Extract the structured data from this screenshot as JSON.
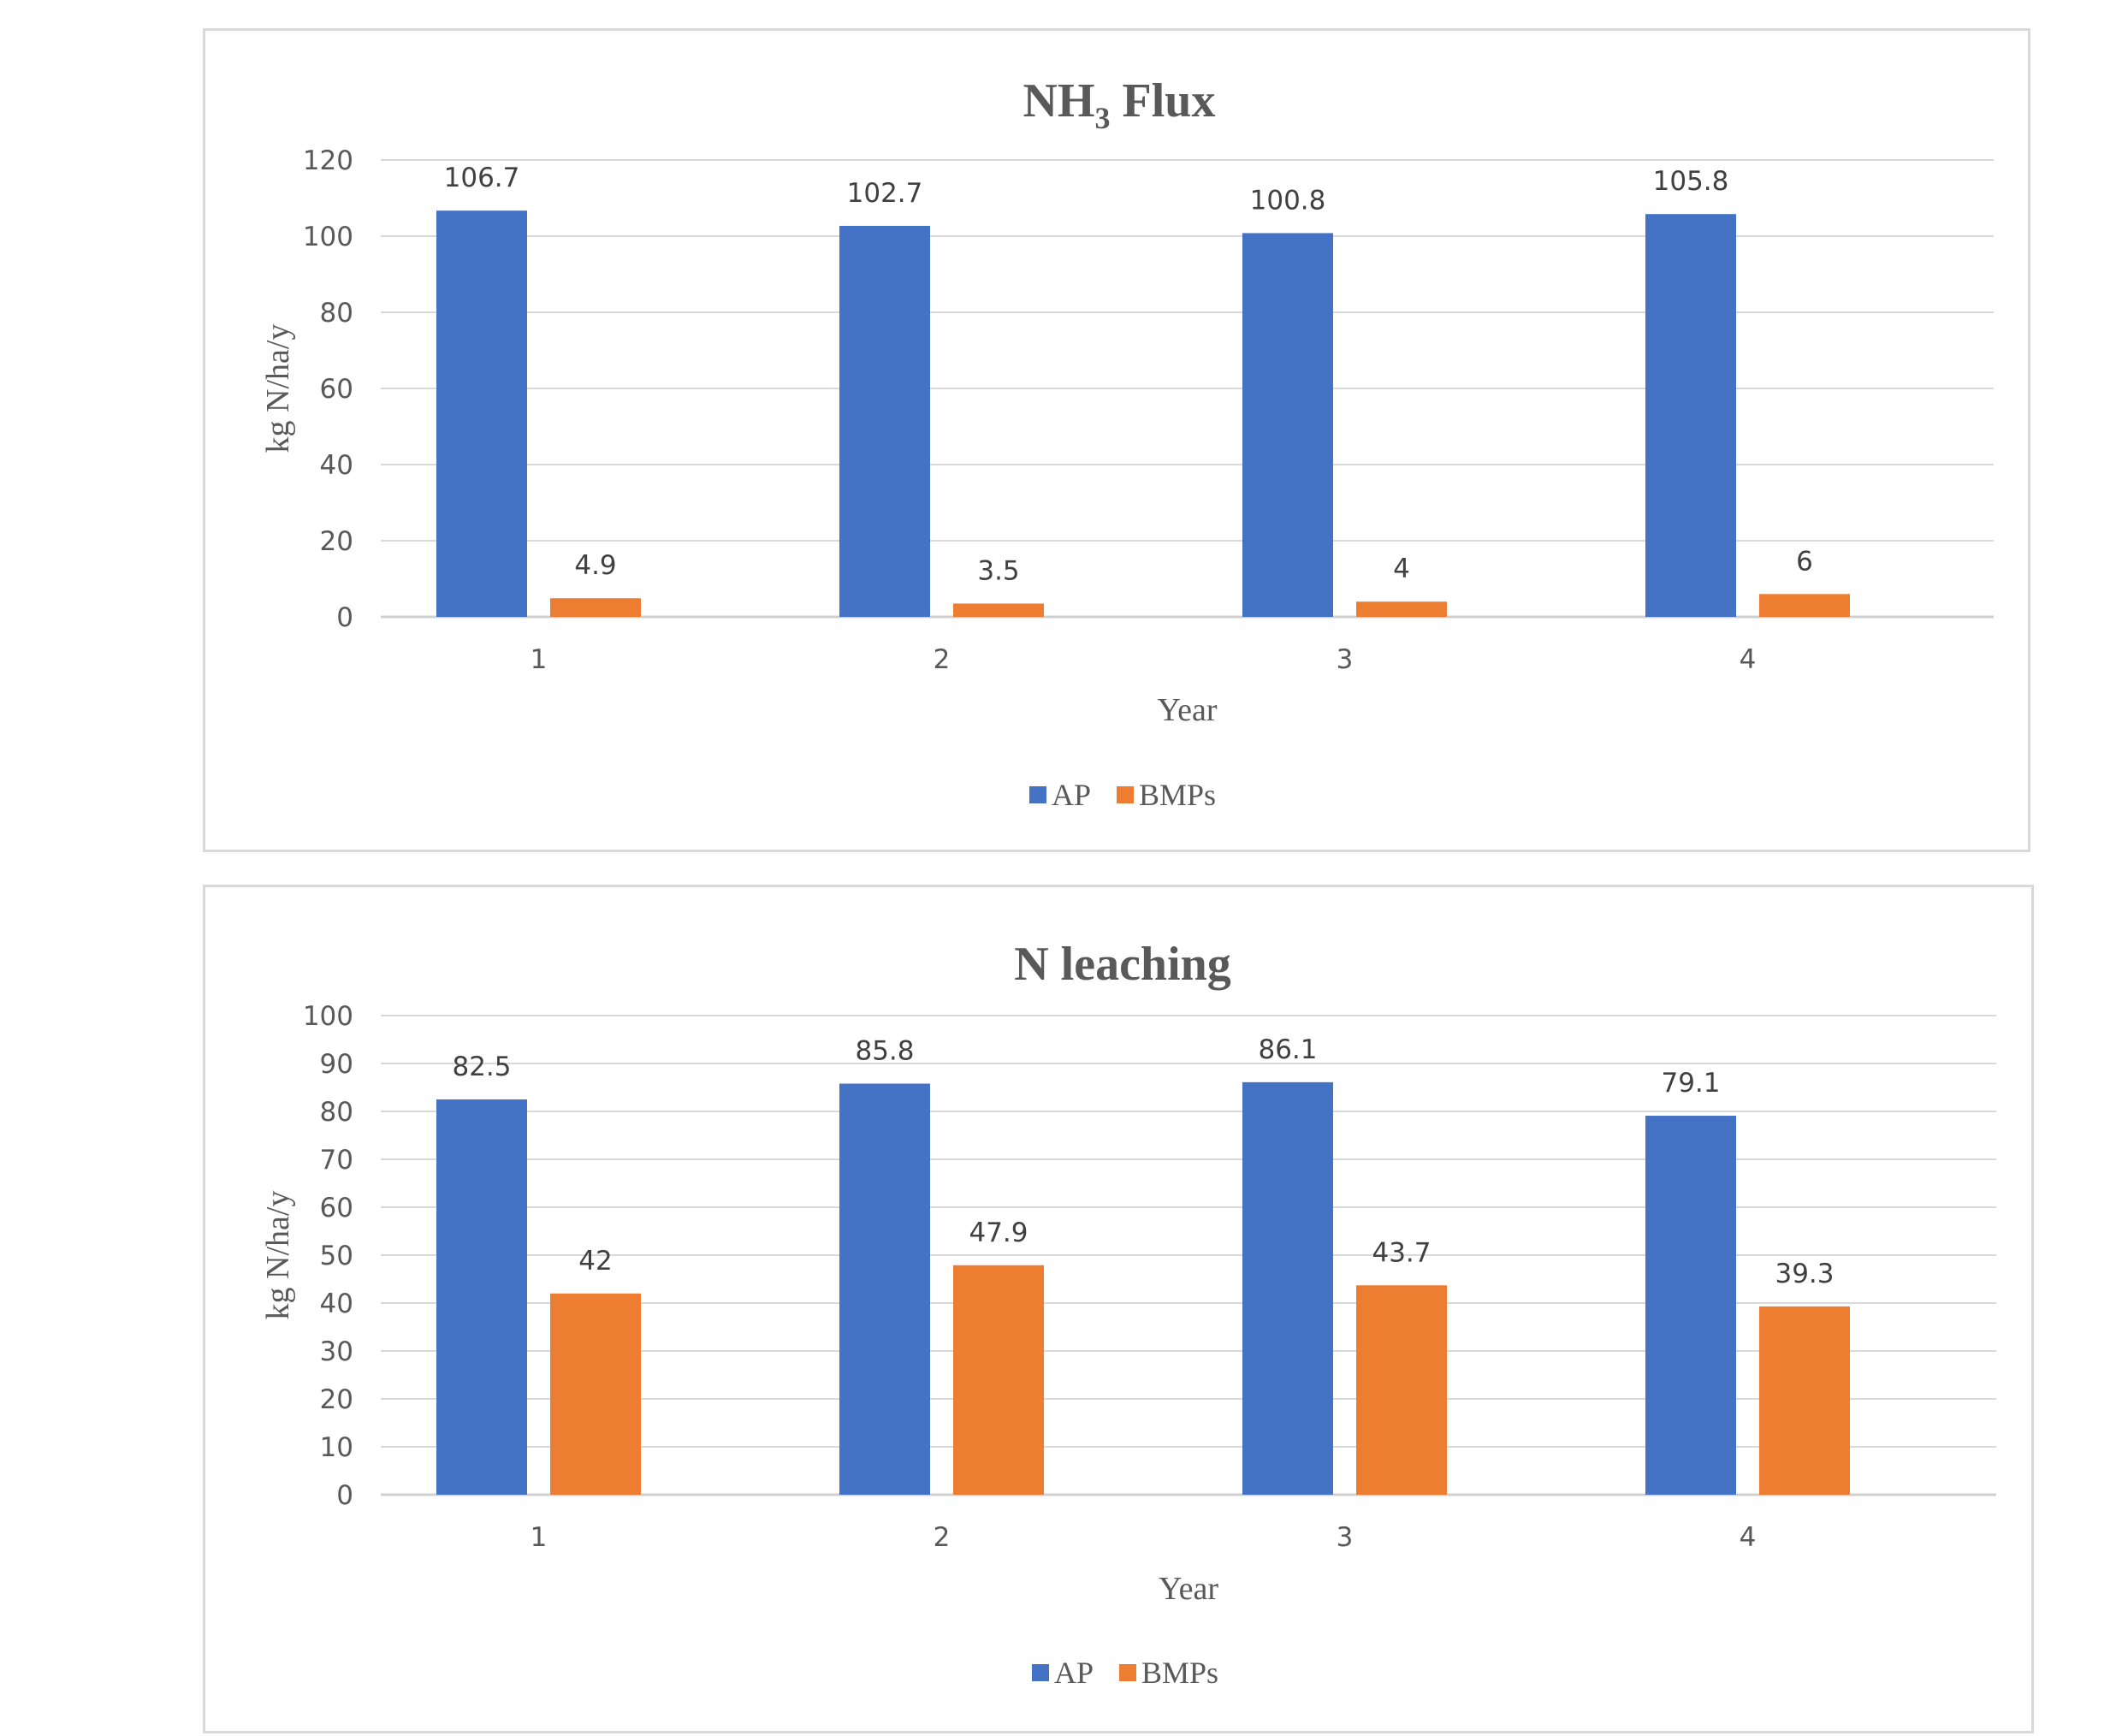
{
  "chart_data": [
    {
      "type": "bar",
      "title_main": "NH",
      "title_sub": "3",
      "title_rest": " Flux",
      "xlabel": "Year",
      "ylabel": "kg N/ha/y",
      "categories": [
        "1",
        "2",
        "3",
        "4"
      ],
      "ylim": [
        0,
        120
      ],
      "yticks": [
        "0",
        "20",
        "40",
        "60",
        "80",
        "100",
        "120"
      ],
      "grid": true,
      "legend": "bottom",
      "series": [
        {
          "name": "AP",
          "color": "#4472c4",
          "values": [
            106.7,
            102.7,
            100.8,
            105.8
          ],
          "labels": [
            "106.7",
            "102.7",
            "100.8",
            "105.8"
          ]
        },
        {
          "name": "BMPs",
          "color": "#ed7d31",
          "values": [
            4.9,
            3.5,
            4,
            6
          ],
          "labels": [
            "4.9",
            "3.5",
            "4",
            "6"
          ]
        }
      ]
    },
    {
      "type": "bar",
      "title_main": "N leaching",
      "title_sub": "",
      "title_rest": "",
      "xlabel": "Year",
      "ylabel": "kg N/ha/y",
      "categories": [
        "1",
        "2",
        "3",
        "4"
      ],
      "ylim": [
        0,
        100
      ],
      "yticks": [
        "0",
        "10",
        "20",
        "30",
        "40",
        "50",
        "60",
        "70",
        "80",
        "90",
        "100"
      ],
      "grid": true,
      "legend": "bottom",
      "series": [
        {
          "name": "AP",
          "color": "#4472c4",
          "values": [
            82.5,
            85.8,
            86.1,
            79.1
          ],
          "labels": [
            "82.5",
            "85.8",
            "86.1",
            "79.1"
          ]
        },
        {
          "name": "BMPs",
          "color": "#ed7d31",
          "values": [
            42,
            47.9,
            43.7,
            39.3
          ],
          "labels": [
            "42",
            "47.9",
            "43.7",
            "39.3"
          ]
        }
      ]
    }
  ]
}
